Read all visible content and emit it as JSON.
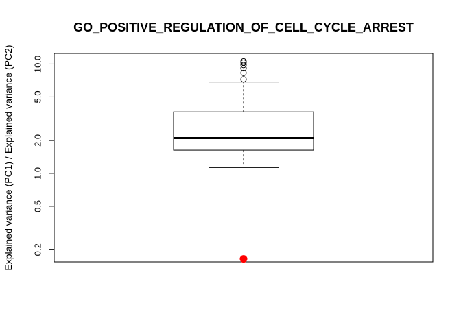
{
  "chart_data": {
    "type": "boxplot",
    "title": "GO_POSITIVE_REGULATION_OF_CELL_CYCLE_ARREST",
    "xlabel": "",
    "ylabel": "Explained variance (PC1) / Explained variance (PC2)",
    "y_scale": "log",
    "ylim": [
      0.155,
      12.5
    ],
    "y_ticks": [
      0.2,
      0.5,
      1.0,
      2.0,
      5.0,
      10.0
    ],
    "y_tick_labels": [
      "0.2",
      "0.5",
      "1.0",
      "2.0",
      "5.0",
      "10.0"
    ],
    "grid": false,
    "box": {
      "whisker_low": 1.13,
      "q1": 1.63,
      "median": 2.1,
      "q3": 3.65,
      "whisker_high": 6.85
    },
    "outliers": [
      7.25,
      8.3,
      9.15,
      9.8,
      10.3,
      10.6
    ],
    "highlight_point": {
      "value": 0.165,
      "color": "#ff0000"
    },
    "colors": {
      "box_fill": "#ffffff",
      "stroke": "#000000",
      "highlight": "#ff0000"
    }
  }
}
